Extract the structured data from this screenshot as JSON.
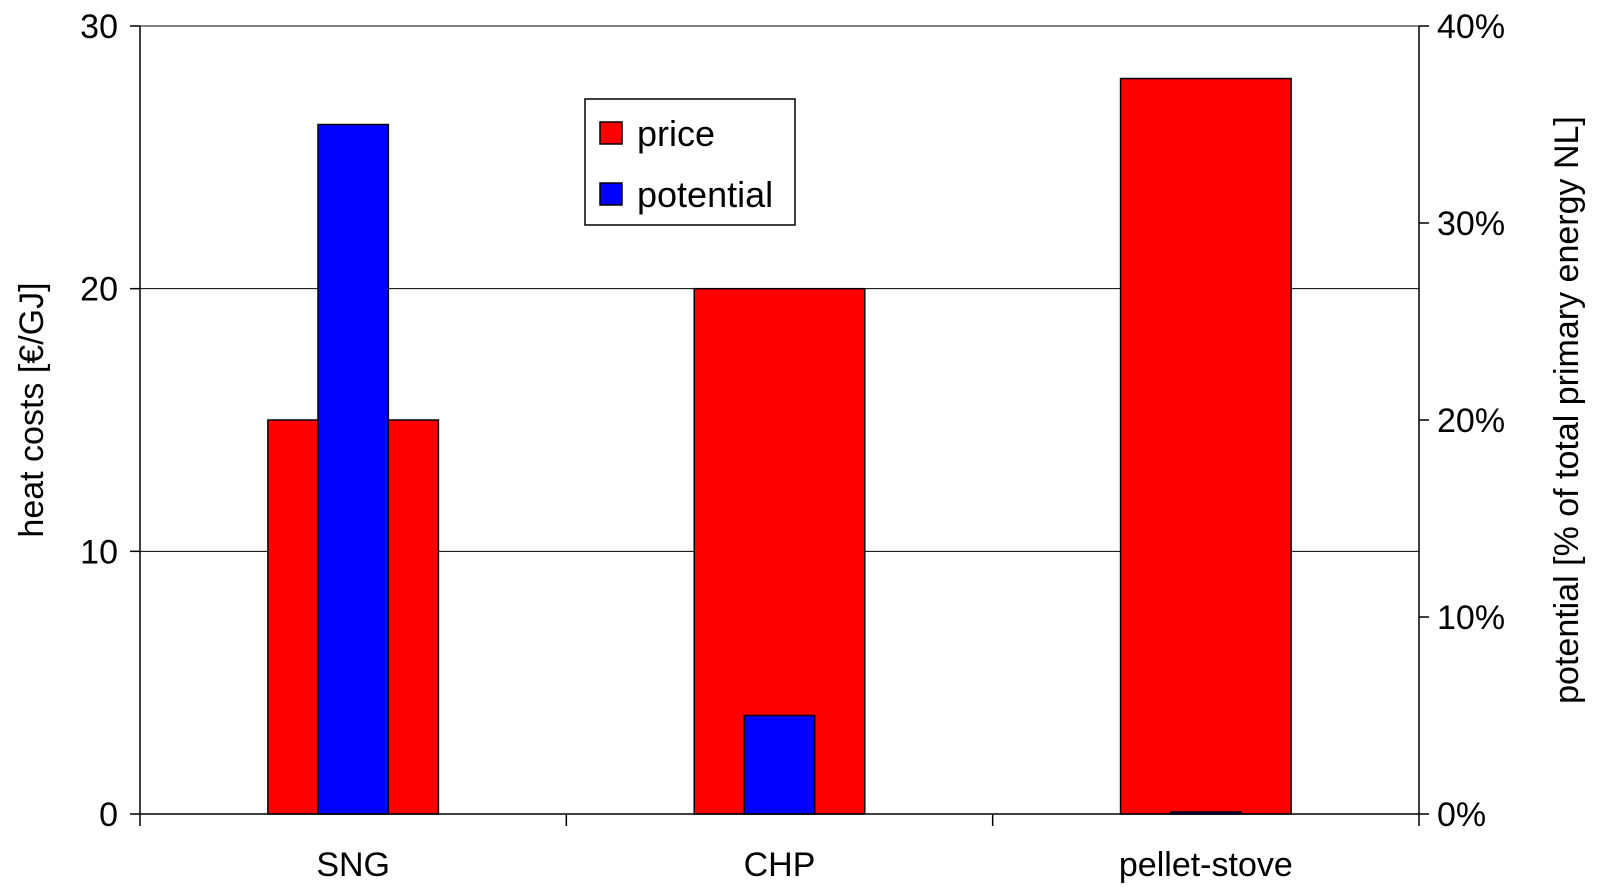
{
  "chart_data": {
    "type": "bar",
    "categories": [
      "SNG",
      "CHP",
      "pellet-stove"
    ],
    "series": [
      {
        "name": "price",
        "axis": "left",
        "values": [
          15,
          20,
          28
        ],
        "color": "#ff0000"
      },
      {
        "name": "potential",
        "axis": "right",
        "values": [
          35,
          5,
          0.1
        ],
        "color": "#0000ff"
      }
    ],
    "ylabel": "heat costs [€/GJ]",
    "ylabel_right": "potential [% of total primary energy NL]",
    "ylim": [
      0,
      30
    ],
    "ylim_right": [
      0,
      40
    ],
    "yticks": [
      "0",
      "10",
      "20",
      "30"
    ],
    "yticks_right": [
      "0%",
      "10%",
      "20%",
      "30%",
      "40%"
    ],
    "grid": true,
    "legend_position": "top-center"
  }
}
